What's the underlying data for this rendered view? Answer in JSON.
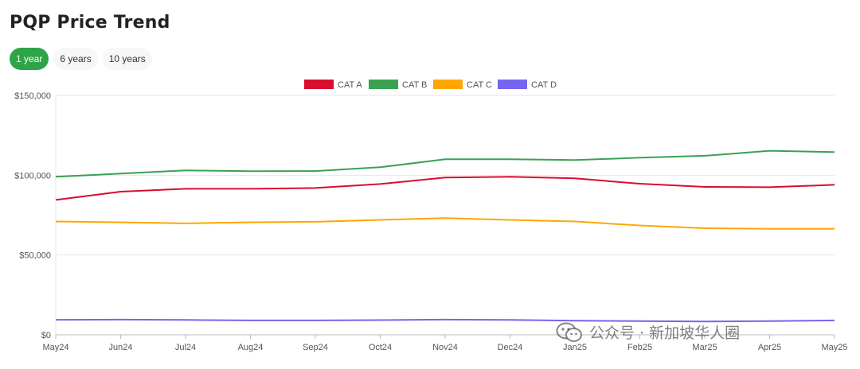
{
  "page": {
    "title": "PQP Price Trend"
  },
  "range_tabs": [
    {
      "label": "1 year",
      "active": true
    },
    {
      "label": "6 years",
      "active": false
    },
    {
      "label": "10 years",
      "active": false
    }
  ],
  "watermark": {
    "text": "公众号 · 新加坡华人圈",
    "icon": "wechat-icon"
  },
  "colors": {
    "active_tab": "#2ea449",
    "grid": "#e6e6e6",
    "axis": "#bbbbbb"
  },
  "chart_data": {
    "type": "line",
    "title": "",
    "xlabel": "",
    "ylabel": "",
    "legend_position": "top-center",
    "grid": true,
    "ylim": [
      0,
      150000
    ],
    "yticks": [
      0,
      50000,
      100000,
      150000
    ],
    "ytick_labels": [
      "$0",
      "$50,000",
      "$100,000",
      "$150,000"
    ],
    "categories": [
      "May24",
      "Jun24",
      "Jul24",
      "Aug24",
      "Sep24",
      "Oct24",
      "Nov24",
      "Dec24",
      "Jan25",
      "Feb25",
      "Mar25",
      "Apr25",
      "May25"
    ],
    "series": [
      {
        "name": "CAT A",
        "color": "#d90d2d",
        "values": [
          84500,
          89700,
          91500,
          91500,
          92000,
          94500,
          98500,
          99000,
          98000,
          94700,
          92700,
          92500,
          94000
        ]
      },
      {
        "name": "CAT B",
        "color": "#3aa152",
        "values": [
          99000,
          101000,
          103000,
          102500,
          102600,
          105000,
          110000,
          110000,
          109500,
          111000,
          112200,
          115300,
          114500
        ]
      },
      {
        "name": "CAT C",
        "color": "#ffa600",
        "values": [
          71000,
          70500,
          69800,
          70500,
          70800,
          72000,
          73100,
          72000,
          71000,
          68500,
          66800,
          66400,
          66400
        ]
      },
      {
        "name": "CAT D",
        "color": "#7565f0",
        "values": [
          9400,
          9500,
          9300,
          9000,
          9000,
          9200,
          9500,
          9300,
          8800,
          8600,
          8300,
          8600,
          9000
        ]
      }
    ]
  }
}
